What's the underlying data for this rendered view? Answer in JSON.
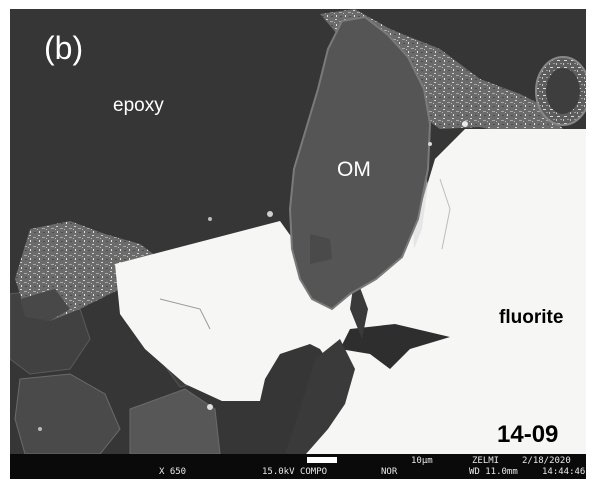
{
  "image": {
    "panel_label": "(b)",
    "sample_id": "14-09",
    "phases": {
      "epoxy": "epoxy",
      "organic_matter": "OM",
      "fluorite": "fluorite"
    }
  },
  "sem_databar": {
    "scale_bar_label": "10µm",
    "lab": "ZELMI",
    "date": "2/18/2020",
    "magnification": "X 650",
    "accelerating_voltage": "15.0kV",
    "detector_mode": "COMPO",
    "scan_mode": "NOR",
    "working_distance": "WD 11.0mm",
    "time": "14:44:46"
  },
  "colors": {
    "epoxy": "#363636",
    "organic_matter": "#555555",
    "fluorite": "#f6f6f4",
    "databar_background": "#0a0a0a"
  }
}
